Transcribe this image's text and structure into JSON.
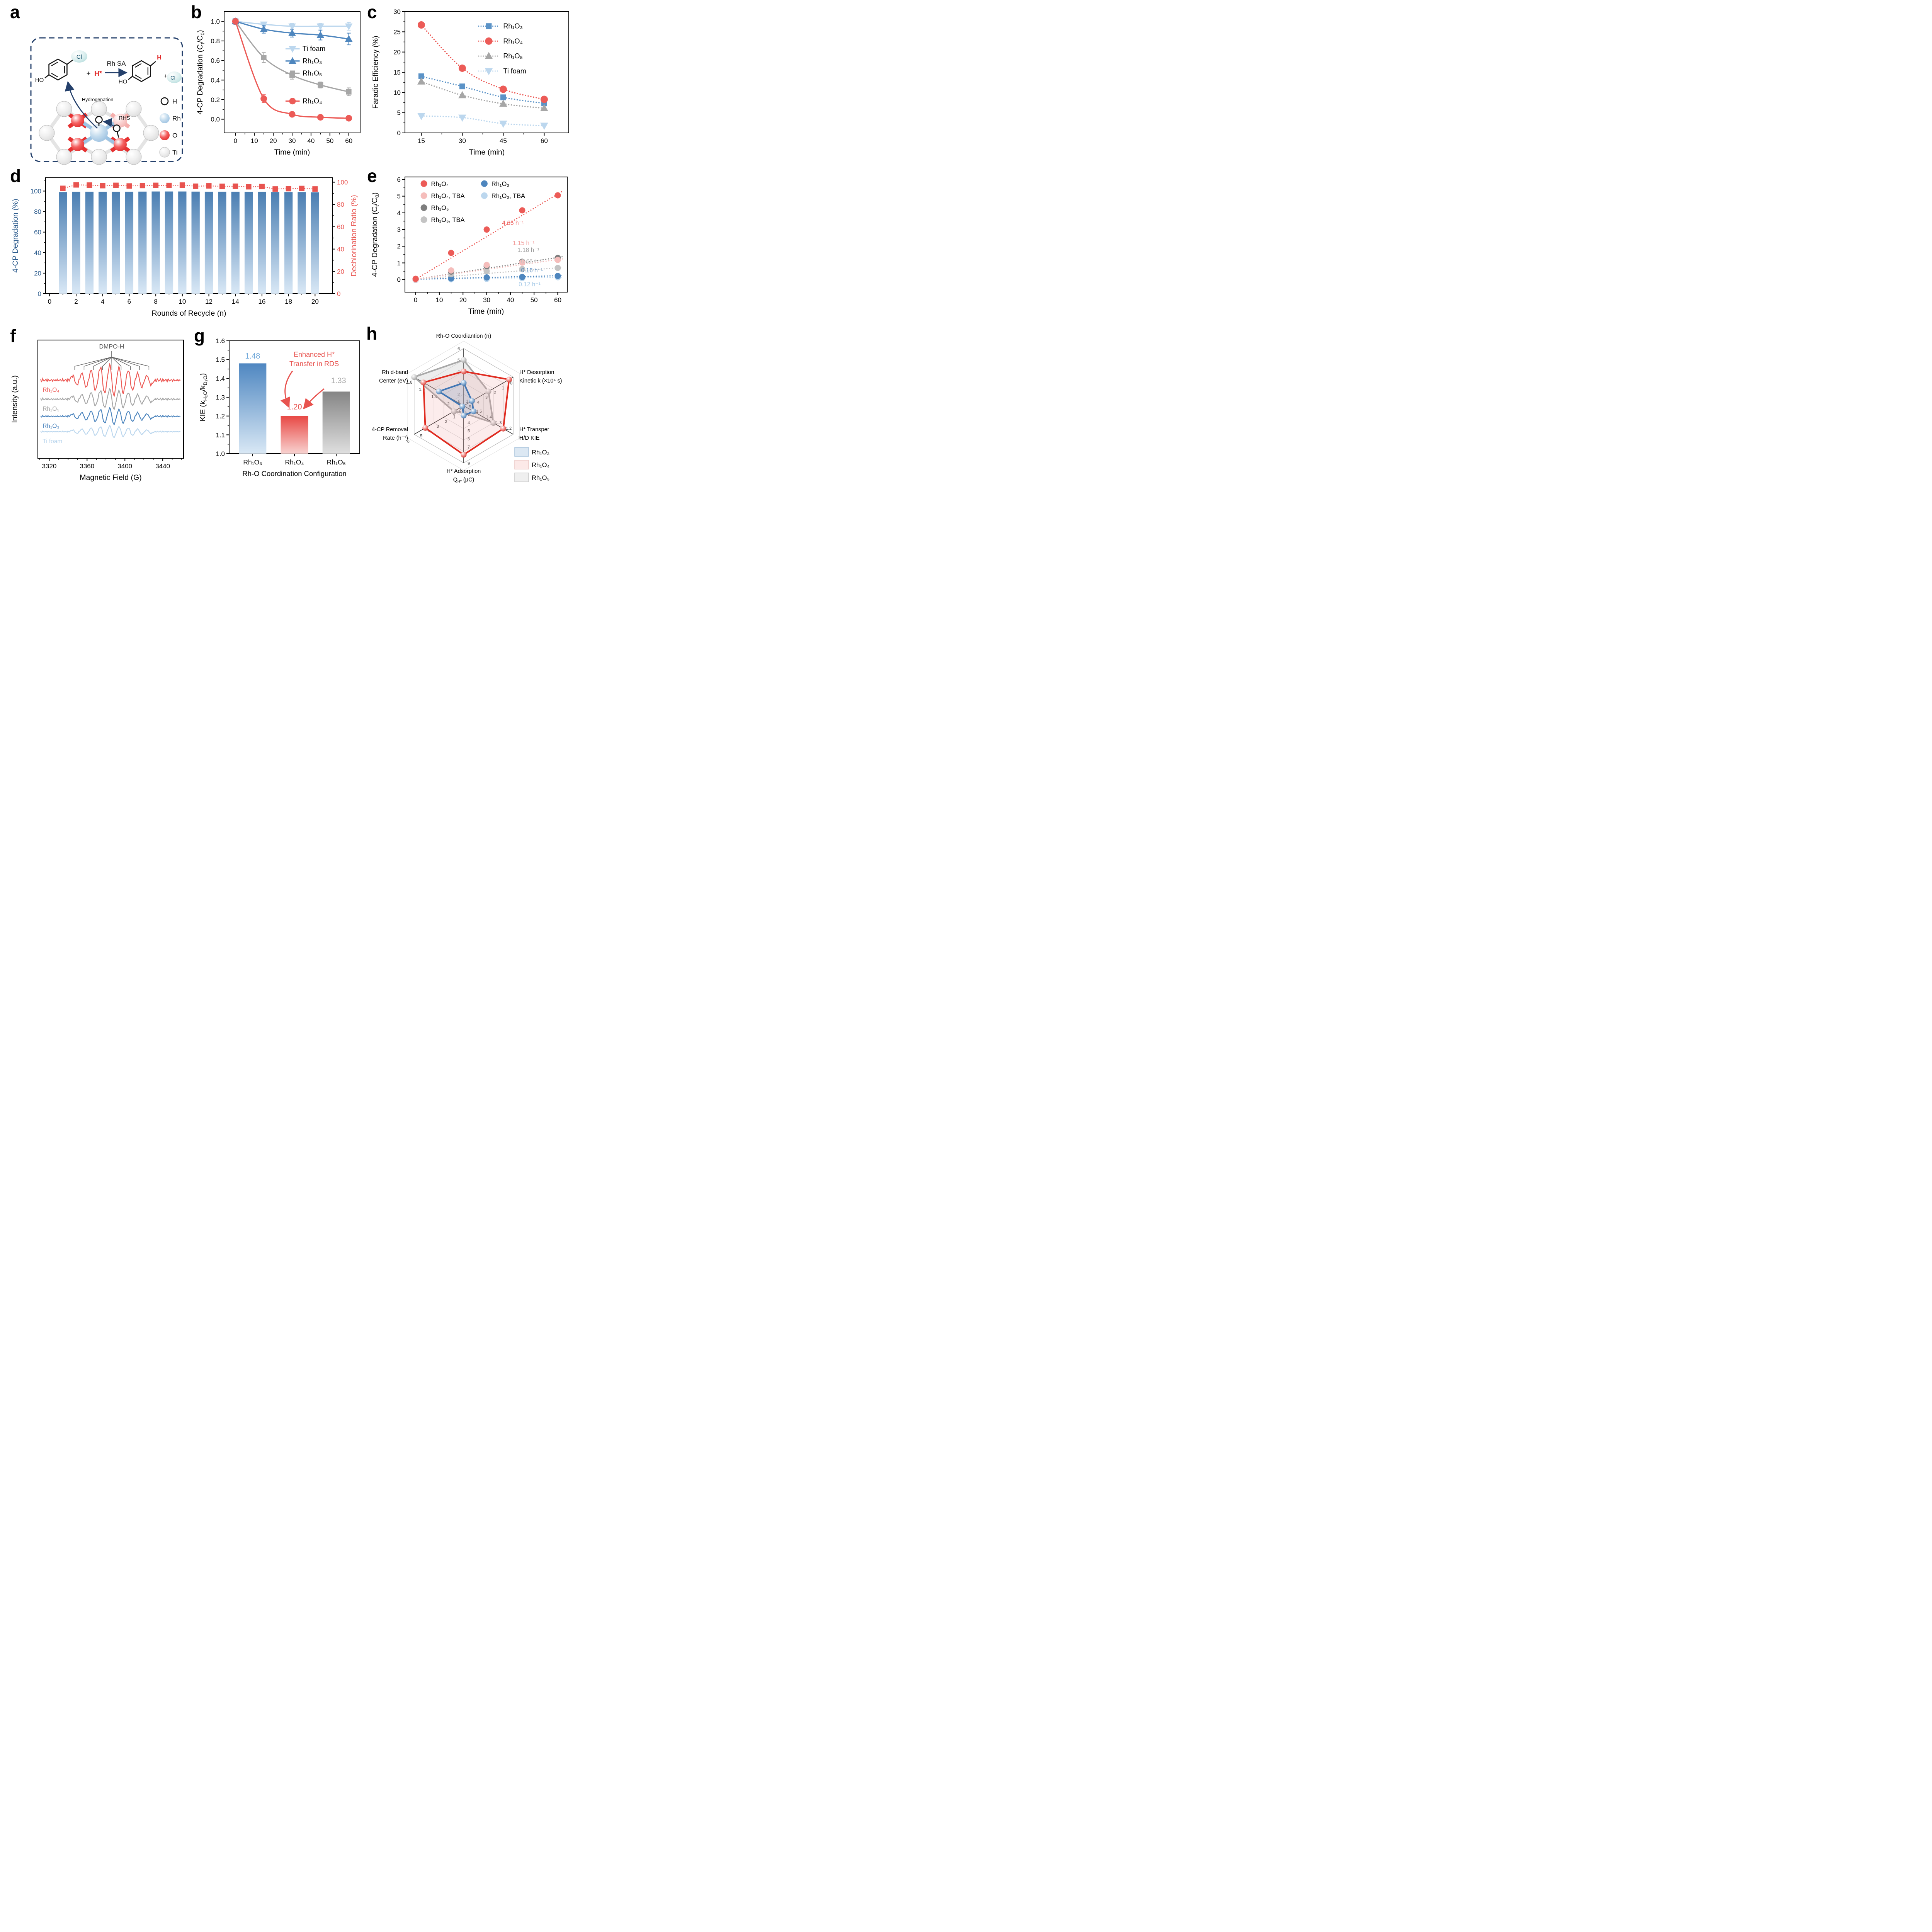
{
  "figure": {
    "background": "#ffffff"
  },
  "colors": {
    "red": "#EC5B57",
    "blue": "#4E86BE",
    "gray": "#A6A6A6",
    "light_blue": "#BCD7EE",
    "pink": "#F5BDBB",
    "dark_gray": "#7E7E7E",
    "light_gray": "#C4C4C4",
    "navy": "#24406B",
    "axis_blue": "#2A5A8C",
    "axis_red": "#E8534F",
    "radar_red": "#E02B20",
    "radar_blue": "#4176B4",
    "radar_gray": "#A9A9A9"
  },
  "panels": {
    "a": {
      "letter": "a",
      "scheme": {
        "reactant_label_ho": "HO",
        "cl_label": "Cl",
        "plus": "+",
        "hstar": "H*",
        "arrow_label": "Rh SA",
        "product_h": "H",
        "product_ho": "HO",
        "cl_minus": "Cl⁻",
        "hydrogenation": "Hydrogenation",
        "rhs": "RHS",
        "legend": [
          {
            "label": "H",
            "type": "hollow"
          },
          {
            "label": "Rh",
            "type": "blue"
          },
          {
            "label": "O",
            "type": "red"
          },
          {
            "label": "Ti",
            "type": "gray"
          }
        ]
      }
    },
    "b": {
      "letter": "b"
    },
    "c": {
      "letter": "c"
    },
    "d": {
      "letter": "d"
    },
    "e": {
      "letter": "e"
    },
    "f": {
      "letter": "f"
    },
    "g": {
      "letter": "g"
    },
    "h": {
      "letter": "h"
    }
  },
  "chart_data": [
    {
      "panel": "b",
      "type": "line",
      "xlabel": "Time (min)",
      "ylabel": "4-CP Degradation (C{t}/C{0})",
      "xlim": [
        -6,
        66
      ],
      "ylim": [
        -0.14,
        1.1
      ],
      "xticks": [
        0,
        10,
        20,
        30,
        40,
        50,
        60
      ],
      "yticks": [
        0.0,
        0.2,
        0.4,
        0.6,
        0.8,
        1.0
      ],
      "x": [
        0,
        15,
        30,
        45,
        60
      ],
      "series": [
        {
          "name": "Ti foam",
          "color": "#BCD7EE",
          "marker": "triangle-down",
          "y": [
            1.0,
            0.97,
            0.95,
            0.95,
            0.95
          ],
          "err": [
            0.03,
            0.02,
            0.03,
            0.03,
            0.04
          ]
        },
        {
          "name": "Rh₁O₃",
          "color": "#4E86BE",
          "marker": "triangle-up",
          "y": [
            1.0,
            0.92,
            0.88,
            0.86,
            0.82
          ],
          "err": [
            0.03,
            0.04,
            0.04,
            0.05,
            0.06
          ]
        },
        {
          "name": "Rh₁O₅",
          "color": "#A6A6A6",
          "marker": "square",
          "y": [
            1.0,
            0.63,
            0.45,
            0.35,
            0.28
          ],
          "err": [
            0.02,
            0.05,
            0.04,
            0.03,
            0.04
          ]
        },
        {
          "name": "Rh₁O₄",
          "color": "#EC5B57",
          "marker": "circle",
          "y": [
            1.0,
            0.21,
            0.05,
            0.02,
            0.01
          ],
          "err": [
            0.02,
            0.04,
            0.02,
            0.02,
            0.02
          ]
        }
      ]
    },
    {
      "panel": "c",
      "type": "line",
      "xlabel": "Time (min)",
      "ylabel": "Faradic Efficiency (%)",
      "xlim": [
        9,
        69
      ],
      "ylim": [
        0,
        30
      ],
      "xticks": [
        15,
        30,
        45,
        60
      ],
      "yticks": [
        0,
        5,
        10,
        15,
        20,
        25,
        30
      ],
      "x": [
        15,
        30,
        45,
        60
      ],
      "series": [
        {
          "name": "Rh₁O₃",
          "color": "#5B93C7",
          "marker": "square",
          "y": [
            14.0,
            11.5,
            8.8,
            7.3
          ]
        },
        {
          "name": "Rh₁O₄",
          "color": "#EC5B57",
          "marker": "circle",
          "y": [
            26.7,
            16.0,
            10.8,
            8.3
          ]
        },
        {
          "name": "Rh₁O₅",
          "color": "#A6A6A6",
          "marker": "triangle-up",
          "y": [
            12.7,
            9.3,
            7.2,
            6.1
          ]
        },
        {
          "name": "Ti foam",
          "color": "#BCD7EE",
          "marker": "triangle-down",
          "y": [
            4.2,
            3.8,
            2.3,
            1.8
          ]
        }
      ]
    },
    {
      "panel": "d",
      "type": "bar+line",
      "xlabel": "Rounds of Recycle (n)",
      "ylabel_left": "4-CP Degradation (%)",
      "ylabel_right": "Dechlorination Ratio (%)",
      "xticks": [
        0,
        2,
        4,
        6,
        8,
        10,
        12,
        14,
        16,
        18,
        20
      ],
      "yticks": [
        0,
        20,
        40,
        60,
        80,
        100
      ],
      "rounds": [
        1,
        2,
        3,
        4,
        5,
        6,
        7,
        8,
        9,
        10,
        11,
        12,
        13,
        14,
        15,
        16,
        17,
        18,
        19,
        20
      ],
      "bars": [
        99.0,
        99.3,
        99.4,
        99.3,
        99.3,
        99.4,
        99.5,
        99.6,
        99.6,
        99.6,
        99.5,
        99.4,
        99.4,
        99.4,
        99.2,
        99.2,
        99.0,
        99.0,
        99.0,
        98.8
      ],
      "dechlorination": [
        94.5,
        97.6,
        97.4,
        96.9,
        97.2,
        96.6,
        97.0,
        97.2,
        97.1,
        97.4,
        96.4,
        96.7,
        96.3,
        96.4,
        95.9,
        96.1,
        93.9,
        94.2,
        94.4,
        93.9
      ],
      "bar_color_top": "#4A7EB2",
      "bar_color_bottom": "#D9E8F6",
      "line_color": "#E8534F"
    },
    {
      "panel": "e",
      "type": "scatter",
      "xlabel": "Time (min)",
      "ylabel": "4-CP Degradation (C{t}/C{0})",
      "xlim": [
        -4.5,
        64
      ],
      "ylim": [
        -0.75,
        6.15
      ],
      "xticks": [
        0,
        10,
        20,
        30,
        40,
        50,
        60
      ],
      "yticks": [
        0,
        1,
        2,
        3,
        4,
        5,
        6
      ],
      "x": [
        0,
        15,
        30,
        45,
        60
      ],
      "series": [
        {
          "name": "Rh₁O₃, TBA",
          "color": "#BCD7EE",
          "y": [
            -0.02,
            0.02,
            0.04,
            0.09,
            0.14
          ],
          "line_end": 0.14,
          "rate_label": "0.12 h⁻¹"
        },
        {
          "name": "Rh₁O₃",
          "color": "#4E86BE",
          "y": [
            0.0,
            0.07,
            0.13,
            0.16,
            0.22
          ],
          "line_end": 0.24,
          "rate_label": "0.16 h⁻¹"
        },
        {
          "name": "Rh₁O₅, TBA",
          "color": "#C4C4C4",
          "y": [
            0.0,
            0.33,
            0.5,
            0.63,
            0.7
          ],
          "line_end": 0.73,
          "rate_label": "0.66 h⁻¹"
        },
        {
          "name": "Rh₁O₅",
          "color": "#7E7E7E",
          "y": [
            0.02,
            0.48,
            0.8,
            1.07,
            1.3
          ],
          "line_end": 1.37,
          "rate_label": "1.18 h⁻¹"
        },
        {
          "name": "Rh₁O₄, TBA",
          "color": "#F5BDBB",
          "y": [
            0.0,
            0.55,
            0.88,
            1.02,
            1.18
          ],
          "line_end": 1.24,
          "rate_label": "1.15 h⁻¹"
        },
        {
          "name": "Rh₁O₄",
          "color": "#EC5B57",
          "y": [
            0.05,
            1.6,
            3.0,
            4.15,
            5.05
          ],
          "line_end": 5.3,
          "rate_label": "4.65 h⁻¹"
        }
      ],
      "annotations": [
        {
          "text": "4.65 h⁻¹",
          "color": "#EC5B57",
          "x": 36.5,
          "y": 3.28
        },
        {
          "text": "1.15 h⁻¹",
          "color": "#F2A09E",
          "x": 41,
          "y": 2.08
        },
        {
          "text": "1.18 h⁻¹",
          "color": "#9A9A9A",
          "x": 43,
          "y": 1.66
        },
        {
          "text": "0.66 h⁻¹",
          "color": "#C2C2C2",
          "x": 44.5,
          "y": 0.97
        },
        {
          "text": "0.16 h⁻¹",
          "color": "#4E86BE",
          "x": 44.5,
          "y": 0.44
        },
        {
          "text": "0.12 h⁻¹",
          "color": "#A8CBE8",
          "x": 43.5,
          "y": -0.4
        }
      ]
    },
    {
      "panel": "f",
      "type": "epr",
      "xlabel": "Magnetic Field (G)",
      "ylabel": "Intensity (a.u.)",
      "xlim": [
        3308,
        3462
      ],
      "xticks": [
        3320,
        3360,
        3400,
        3440
      ],
      "annotation": "DMPO-H",
      "peaks": {
        "start": 3347,
        "spacing": 9.8,
        "sigma": 2.2,
        "envelope": [
          0.3,
          0.45,
          0.65,
          0.85,
          1.0,
          0.85,
          0.65,
          0.45,
          0.3
        ]
      },
      "traces": [
        {
          "name": "Rh₁O₄",
          "color": "#EC5B57",
          "amp": 40,
          "base_frac": 0.34
        },
        {
          "name": "Rh₁O₅",
          "color": "#A6A6A6",
          "amp": 26,
          "base_frac": 0.5
        },
        {
          "name": "Rh₁O₃",
          "color": "#4E86BE",
          "amp": 21,
          "base_frac": 0.645
        },
        {
          "name": "Ti foam",
          "color": "#BCD7EE",
          "amp": 15,
          "base_frac": 0.775
        }
      ]
    },
    {
      "panel": "g",
      "type": "bar",
      "xlabel": "Rh-O Coordination Configuration",
      "ylabel": "KIE (k{H₂O}/k{D₂O})",
      "ylim": [
        1.0,
        1.6
      ],
      "yticks": [
        1.0,
        1.1,
        1.2,
        1.3,
        1.4,
        1.5,
        1.6
      ],
      "categories": [
        "Rh₁O₃",
        "Rh₁O₄",
        "Rh₁O₅"
      ],
      "values": [
        1.48,
        1.2,
        1.33
      ],
      "value_labels": [
        "1.48",
        "1.20",
        "1.33"
      ],
      "value_colors": [
        "#70A8DA",
        "#E8534F",
        "#A6A6A6"
      ],
      "bar_gradients": [
        [
          "#4F87C1",
          "#D9E8F5"
        ],
        [
          "#E84844",
          "#F8D2D0"
        ],
        [
          "#858585",
          "#DFDFDF"
        ]
      ],
      "annotation": {
        "lines": [
          "Enhanced H*",
          "Transfer in RDS"
        ],
        "color": "#E8534F"
      }
    },
    {
      "panel": "h",
      "type": "radar",
      "axes": [
        {
          "title": "Rh-O Coordiantion (n)",
          "center": 1,
          "outer": 6,
          "ticks": [
            6,
            5,
            4,
            3,
            2
          ],
          "center_tick": "1"
        },
        {
          "title": "H* Desorption|Kinetic k (×10⁴ s)",
          "center": 6,
          "outer": 0,
          "ticks": [
            0,
            1,
            2,
            3,
            4,
            5
          ],
          "center_tick": "6"
        },
        {
          "title": "H* Transper|H/D KIE",
          "center": 1.6,
          "outer": 1.1,
          "ticks": [
            1.1,
            1.2,
            1.3,
            1.4,
            1.5
          ],
          "center_tick": ""
        },
        {
          "title": "H* Adsorption|Q{H*} (μC)",
          "center": 2,
          "outer": 9,
          "ticks": [
            3,
            4,
            5,
            6,
            7,
            9
          ],
          "center_tick": "2"
        },
        {
          "title": "4-CP Removal|Rate (h⁻¹)",
          "center": 0,
          "outer": 6,
          "ticks": [
            1,
            2,
            3,
            4,
            5,
            6
          ],
          "center_tick": "0"
        },
        {
          "title": "Rh d-band|Center (eV)",
          "center": 1,
          "outer": 1.8,
          "ticks": [
            1.8,
            1.6,
            1.4,
            1.2
          ],
          "center_tick": "1"
        }
      ],
      "series": [
        {
          "name": "Rh₁O₅",
          "color": "#A9A9A9",
          "fill": "rgba(190,190,190,0.28)",
          "values": [
            5,
            3,
            1.3,
            2.9,
            1.18,
            1.8
          ]
        },
        {
          "name": "Rh₁O₄",
          "color": "#E02B20",
          "fill": "rgba(240,150,150,0.18)",
          "values": [
            4,
            0.5,
            1.2,
            8,
            4.65,
            1.65
          ]
        },
        {
          "name": "Rh₁O₃",
          "color": "#4176B4",
          "fill": "rgba(120,160,205,0.20)",
          "values": [
            3,
            5,
            1.5,
            3.2,
            0.16,
            1.4
          ]
        }
      ],
      "legend": [
        {
          "name": "Rh₁O₃",
          "swatch": "#DCE8F3",
          "border": "#A9C4DC"
        },
        {
          "name": "Rh₁O₄",
          "swatch": "#FCE9E8",
          "border": "#EBC8C6"
        },
        {
          "name": "Rh₁O₅",
          "swatch": "#EFEFEF",
          "border": "#C9C9C9"
        }
      ]
    }
  ]
}
